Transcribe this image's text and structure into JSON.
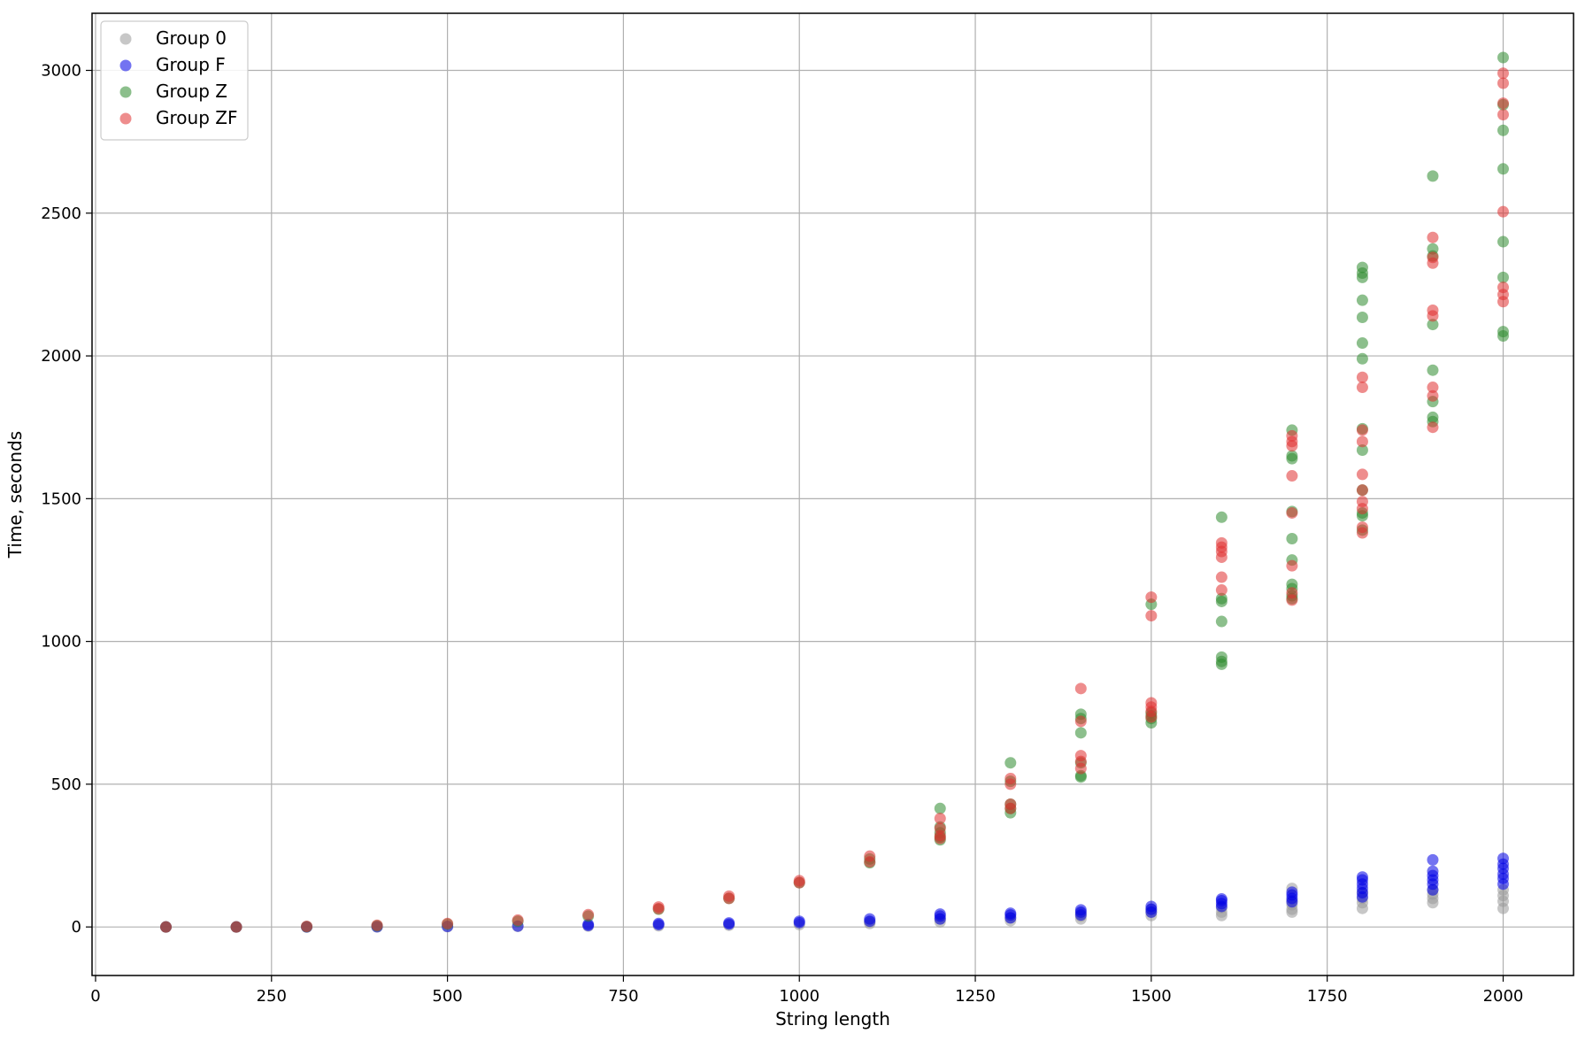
{
  "chart_data": {
    "type": "scatter",
    "title": "",
    "xlabel": "String length",
    "ylabel": "Time, seconds",
    "xlim": [
      -5,
      2100
    ],
    "ylim": [
      -170,
      3200
    ],
    "xticks": [
      0,
      250,
      500,
      750,
      1000,
      1250,
      1500,
      1750,
      2000
    ],
    "yticks": [
      0,
      500,
      1000,
      1500,
      2000,
      2500,
      3000
    ],
    "grid": true,
    "legend_position": "top-left",
    "series": [
      {
        "name": "Group 0",
        "color": "#999999",
        "points": [
          [
            100,
            0
          ],
          [
            200,
            0
          ],
          [
            300,
            0
          ],
          [
            400,
            0
          ],
          [
            500,
            1
          ],
          [
            600,
            2
          ],
          [
            700,
            3
          ],
          [
            800,
            4
          ],
          [
            900,
            6
          ],
          [
            1000,
            8
          ],
          [
            1100,
            12
          ],
          [
            1100,
            18
          ],
          [
            1200,
            18
          ],
          [
            1200,
            28
          ],
          [
            1300,
            22
          ],
          [
            1300,
            32
          ],
          [
            1400,
            28
          ],
          [
            1400,
            38
          ],
          [
            1400,
            48
          ],
          [
            1500,
            40
          ],
          [
            1500,
            52
          ],
          [
            1500,
            62
          ],
          [
            1600,
            40
          ],
          [
            1600,
            52
          ],
          [
            1600,
            68
          ],
          [
            1700,
            52
          ],
          [
            1700,
            62
          ],
          [
            1700,
            78
          ],
          [
            1700,
            92
          ],
          [
            1700,
            135
          ],
          [
            1800,
            65
          ],
          [
            1800,
            85
          ],
          [
            1800,
            100
          ],
          [
            1800,
            120
          ],
          [
            1900,
            85
          ],
          [
            1900,
            100
          ],
          [
            1900,
            115
          ],
          [
            1900,
            130
          ],
          [
            2000,
            65
          ],
          [
            2000,
            90
          ],
          [
            2000,
            110
          ],
          [
            2000,
            130
          ]
        ]
      },
      {
        "name": "Group F",
        "color": "#0000e6",
        "points": [
          [
            100,
            0
          ],
          [
            200,
            0
          ],
          [
            300,
            0
          ],
          [
            400,
            1
          ],
          [
            500,
            2
          ],
          [
            600,
            3
          ],
          [
            700,
            5
          ],
          [
            700,
            9
          ],
          [
            800,
            8
          ],
          [
            800,
            12
          ],
          [
            900,
            10
          ],
          [
            900,
            14
          ],
          [
            1000,
            15
          ],
          [
            1000,
            20
          ],
          [
            1100,
            20
          ],
          [
            1100,
            28
          ],
          [
            1200,
            28
          ],
          [
            1200,
            38
          ],
          [
            1200,
            45
          ],
          [
            1300,
            32
          ],
          [
            1300,
            42
          ],
          [
            1300,
            48
          ],
          [
            1400,
            42
          ],
          [
            1400,
            52
          ],
          [
            1400,
            60
          ],
          [
            1500,
            52
          ],
          [
            1500,
            62
          ],
          [
            1500,
            72
          ],
          [
            1600,
            72
          ],
          [
            1600,
            82
          ],
          [
            1600,
            92
          ],
          [
            1600,
            98
          ],
          [
            1700,
            88
          ],
          [
            1700,
            100
          ],
          [
            1700,
            112
          ],
          [
            1700,
            122
          ],
          [
            1800,
            105
          ],
          [
            1800,
            120
          ],
          [
            1800,
            135
          ],
          [
            1800,
            150
          ],
          [
            1800,
            165
          ],
          [
            1800,
            175
          ],
          [
            1900,
            130
          ],
          [
            1900,
            150
          ],
          [
            1900,
            165
          ],
          [
            1900,
            180
          ],
          [
            1900,
            195
          ],
          [
            1900,
            235
          ],
          [
            2000,
            150
          ],
          [
            2000,
            170
          ],
          [
            2000,
            185
          ],
          [
            2000,
            205
          ],
          [
            2000,
            220
          ],
          [
            2000,
            240
          ]
        ]
      },
      {
        "name": "Group Z",
        "color": "#2e8b2e",
        "points": [
          [
            100,
            0
          ],
          [
            200,
            0
          ],
          [
            300,
            1
          ],
          [
            400,
            4
          ],
          [
            500,
            10
          ],
          [
            600,
            20
          ],
          [
            700,
            38
          ],
          [
            800,
            62
          ],
          [
            900,
            100
          ],
          [
            1000,
            155
          ],
          [
            1100,
            225
          ],
          [
            1100,
            238
          ],
          [
            1200,
            305
          ],
          [
            1200,
            315
          ],
          [
            1200,
            330
          ],
          [
            1200,
            350
          ],
          [
            1200,
            415
          ],
          [
            1300,
            400
          ],
          [
            1300,
            415
          ],
          [
            1300,
            430
          ],
          [
            1300,
            510
          ],
          [
            1300,
            575
          ],
          [
            1400,
            525
          ],
          [
            1400,
            530
          ],
          [
            1400,
            575
          ],
          [
            1400,
            680
          ],
          [
            1400,
            730
          ],
          [
            1400,
            745
          ],
          [
            1500,
            715
          ],
          [
            1500,
            730
          ],
          [
            1500,
            740
          ],
          [
            1500,
            750
          ],
          [
            1500,
            1130
          ],
          [
            1600,
            920
          ],
          [
            1600,
            930
          ],
          [
            1600,
            945
          ],
          [
            1600,
            1070
          ],
          [
            1600,
            1140
          ],
          [
            1600,
            1150
          ],
          [
            1600,
            1435
          ],
          [
            1700,
            1150
          ],
          [
            1700,
            1160
          ],
          [
            1700,
            1185
          ],
          [
            1700,
            1200
          ],
          [
            1700,
            1285
          ],
          [
            1700,
            1360
          ],
          [
            1700,
            1455
          ],
          [
            1700,
            1640
          ],
          [
            1700,
            1650
          ],
          [
            1700,
            1740
          ],
          [
            1800,
            1390
          ],
          [
            1800,
            1440
          ],
          [
            1800,
            1450
          ],
          [
            1800,
            1530
          ],
          [
            1800,
            1670
          ],
          [
            1800,
            1745
          ],
          [
            1800,
            1990
          ],
          [
            1800,
            2045
          ],
          [
            1800,
            2135
          ],
          [
            1800,
            2195
          ],
          [
            1800,
            2275
          ],
          [
            1800,
            2290
          ],
          [
            1800,
            2310
          ],
          [
            1900,
            1770
          ],
          [
            1900,
            1785
          ],
          [
            1900,
            1840
          ],
          [
            1900,
            1950
          ],
          [
            1900,
            2110
          ],
          [
            1900,
            2350
          ],
          [
            1900,
            2375
          ],
          [
            1900,
            2630
          ],
          [
            2000,
            2070
          ],
          [
            2000,
            2085
          ],
          [
            2000,
            2275
          ],
          [
            2000,
            2400
          ],
          [
            2000,
            2655
          ],
          [
            2000,
            2790
          ],
          [
            2000,
            2880
          ],
          [
            2000,
            3045
          ]
        ]
      },
      {
        "name": "Group ZF",
        "color": "#e03030",
        "points": [
          [
            100,
            0
          ],
          [
            200,
            0
          ],
          [
            300,
            2
          ],
          [
            400,
            6
          ],
          [
            500,
            12
          ],
          [
            600,
            24
          ],
          [
            700,
            43
          ],
          [
            800,
            64
          ],
          [
            800,
            70
          ],
          [
            900,
            100
          ],
          [
            900,
            108
          ],
          [
            1000,
            155
          ],
          [
            1000,
            162
          ],
          [
            1100,
            228
          ],
          [
            1100,
            248
          ],
          [
            1200,
            310
          ],
          [
            1200,
            320
          ],
          [
            1200,
            345
          ],
          [
            1200,
            380
          ],
          [
            1300,
            415
          ],
          [
            1300,
            430
          ],
          [
            1300,
            500
          ],
          [
            1300,
            520
          ],
          [
            1400,
            555
          ],
          [
            1400,
            580
          ],
          [
            1400,
            600
          ],
          [
            1400,
            720
          ],
          [
            1400,
            835
          ],
          [
            1500,
            735
          ],
          [
            1500,
            755
          ],
          [
            1500,
            770
          ],
          [
            1500,
            785
          ],
          [
            1500,
            1090
          ],
          [
            1500,
            1155
          ],
          [
            1600,
            1180
          ],
          [
            1600,
            1225
          ],
          [
            1600,
            1295
          ],
          [
            1600,
            1315
          ],
          [
            1600,
            1330
          ],
          [
            1600,
            1345
          ],
          [
            1700,
            1145
          ],
          [
            1700,
            1170
          ],
          [
            1700,
            1265
          ],
          [
            1700,
            1450
          ],
          [
            1700,
            1580
          ],
          [
            1700,
            1685
          ],
          [
            1700,
            1700
          ],
          [
            1700,
            1720
          ],
          [
            1800,
            1380
          ],
          [
            1800,
            1400
          ],
          [
            1800,
            1465
          ],
          [
            1800,
            1490
          ],
          [
            1800,
            1530
          ],
          [
            1800,
            1585
          ],
          [
            1800,
            1700
          ],
          [
            1800,
            1740
          ],
          [
            1800,
            1890
          ],
          [
            1800,
            1925
          ],
          [
            1900,
            1750
          ],
          [
            1900,
            1860
          ],
          [
            1900,
            1890
          ],
          [
            1900,
            2140
          ],
          [
            1900,
            2160
          ],
          [
            1900,
            2325
          ],
          [
            1900,
            2345
          ],
          [
            1900,
            2415
          ],
          [
            2000,
            2190
          ],
          [
            2000,
            2215
          ],
          [
            2000,
            2240
          ],
          [
            2000,
            2505
          ],
          [
            2000,
            2845
          ],
          [
            2000,
            2885
          ],
          [
            2000,
            2955
          ],
          [
            2000,
            2990
          ]
        ]
      }
    ]
  }
}
